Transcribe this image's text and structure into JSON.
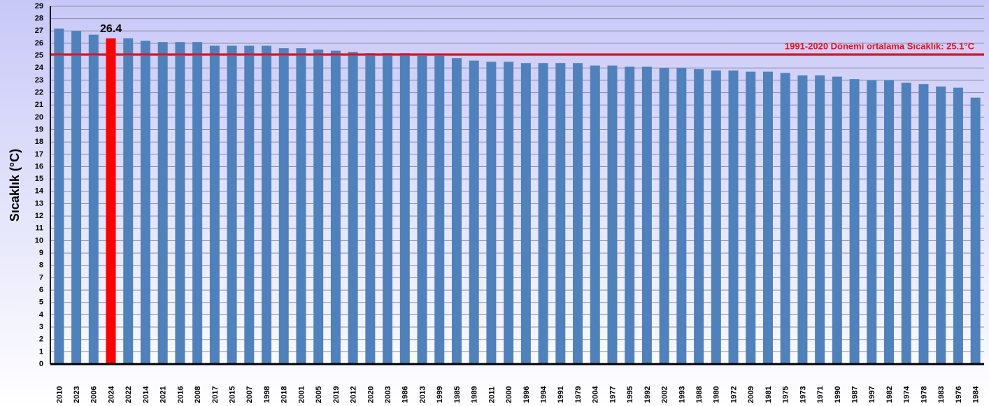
{
  "chart_data": {
    "type": "bar",
    "ylabel": "Sıcaklık (°C)",
    "categories": [
      "2010",
      "2023",
      "2006",
      "2024",
      "2022",
      "2014",
      "2021",
      "2016",
      "2008",
      "2017",
      "2015",
      "2007",
      "1998",
      "2018",
      "2001",
      "2005",
      "2019",
      "2012",
      "2020",
      "2003",
      "1986",
      "2013",
      "1999",
      "1985",
      "1989",
      "2011",
      "2000",
      "1996",
      "1994",
      "1991",
      "1979",
      "2004",
      "1977",
      "1995",
      "1992",
      "2002",
      "1993",
      "1988",
      "1980",
      "1972",
      "2009",
      "1981",
      "1975",
      "1973",
      "1971",
      "1990",
      "1987",
      "1997",
      "1982",
      "1974",
      "1978",
      "1983",
      "1976",
      "1984"
    ],
    "values": [
      27.2,
      27.0,
      26.7,
      26.4,
      26.4,
      26.2,
      26.1,
      26.1,
      26.1,
      25.8,
      25.8,
      25.8,
      25.8,
      25.6,
      25.6,
      25.5,
      25.4,
      25.3,
      25.2,
      25.2,
      25.2,
      25.0,
      25.0,
      24.8,
      24.6,
      24.5,
      24.5,
      24.4,
      24.4,
      24.4,
      24.4,
      24.2,
      24.2,
      24.1,
      24.1,
      24.0,
      24.0,
      23.9,
      23.8,
      23.8,
      23.7,
      23.7,
      23.6,
      23.4,
      23.4,
      23.3,
      23.1,
      23.0,
      23.0,
      22.8,
      22.7,
      22.5,
      22.4,
      21.6
    ],
    "value_labels": [
      null,
      null,
      null,
      "26.4",
      null,
      null,
      null,
      null,
      null,
      null,
      null,
      null,
      null,
      null,
      null,
      null,
      null,
      null,
      null,
      null,
      null,
      null,
      null,
      null,
      null,
      null,
      null,
      null,
      null,
      null,
      null,
      null,
      null,
      null,
      null,
      null,
      null,
      null,
      null,
      null,
      null,
      null,
      null,
      null,
      null,
      null,
      null,
      null,
      null,
      null,
      null,
      null,
      null,
      null
    ],
    "color": "#4f81bd",
    "colors": [
      "#4f81bd",
      "#4f81bd",
      "#4f81bd",
      "#ff0000",
      "#4f81bd",
      "#4f81bd",
      "#4f81bd",
      "#4f81bd",
      "#4f81bd",
      "#4f81bd",
      "#4f81bd",
      "#4f81bd",
      "#4f81bd",
      "#4f81bd",
      "#4f81bd",
      "#4f81bd",
      "#4f81bd",
      "#4f81bd",
      "#4f81bd",
      "#4f81bd",
      "#4f81bd",
      "#4f81bd",
      "#4f81bd",
      "#4f81bd",
      "#4f81bd",
      "#4f81bd",
      "#4f81bd",
      "#4f81bd",
      "#4f81bd",
      "#4f81bd",
      "#4f81bd",
      "#4f81bd",
      "#4f81bd",
      "#4f81bd",
      "#4f81bd",
      "#4f81bd",
      "#4f81bd",
      "#4f81bd",
      "#4f81bd",
      "#4f81bd",
      "#4f81bd",
      "#4f81bd",
      "#4f81bd",
      "#4f81bd",
      "#4f81bd",
      "#4f81bd",
      "#4f81bd",
      "#4f81bd",
      "#4f81bd",
      "#4f81bd",
      "#4f81bd",
      "#4f81bd",
      "#4f81bd",
      "#4f81bd"
    ],
    "reference_line": {
      "value": 25.1,
      "label": "1991-2020 Dönemi ortalama Sıcaklık: 25.1°C",
      "color": "#e8101e"
    },
    "ylim": [
      0,
      29
    ],
    "yticks": [
      0,
      1,
      2,
      3,
      4,
      5,
      6,
      7,
      8,
      9,
      10,
      11,
      12,
      13,
      14,
      15,
      16,
      17,
      18,
      19,
      20,
      21,
      22,
      23,
      24,
      25,
      26,
      27,
      28,
      29
    ],
    "grid": true
  }
}
